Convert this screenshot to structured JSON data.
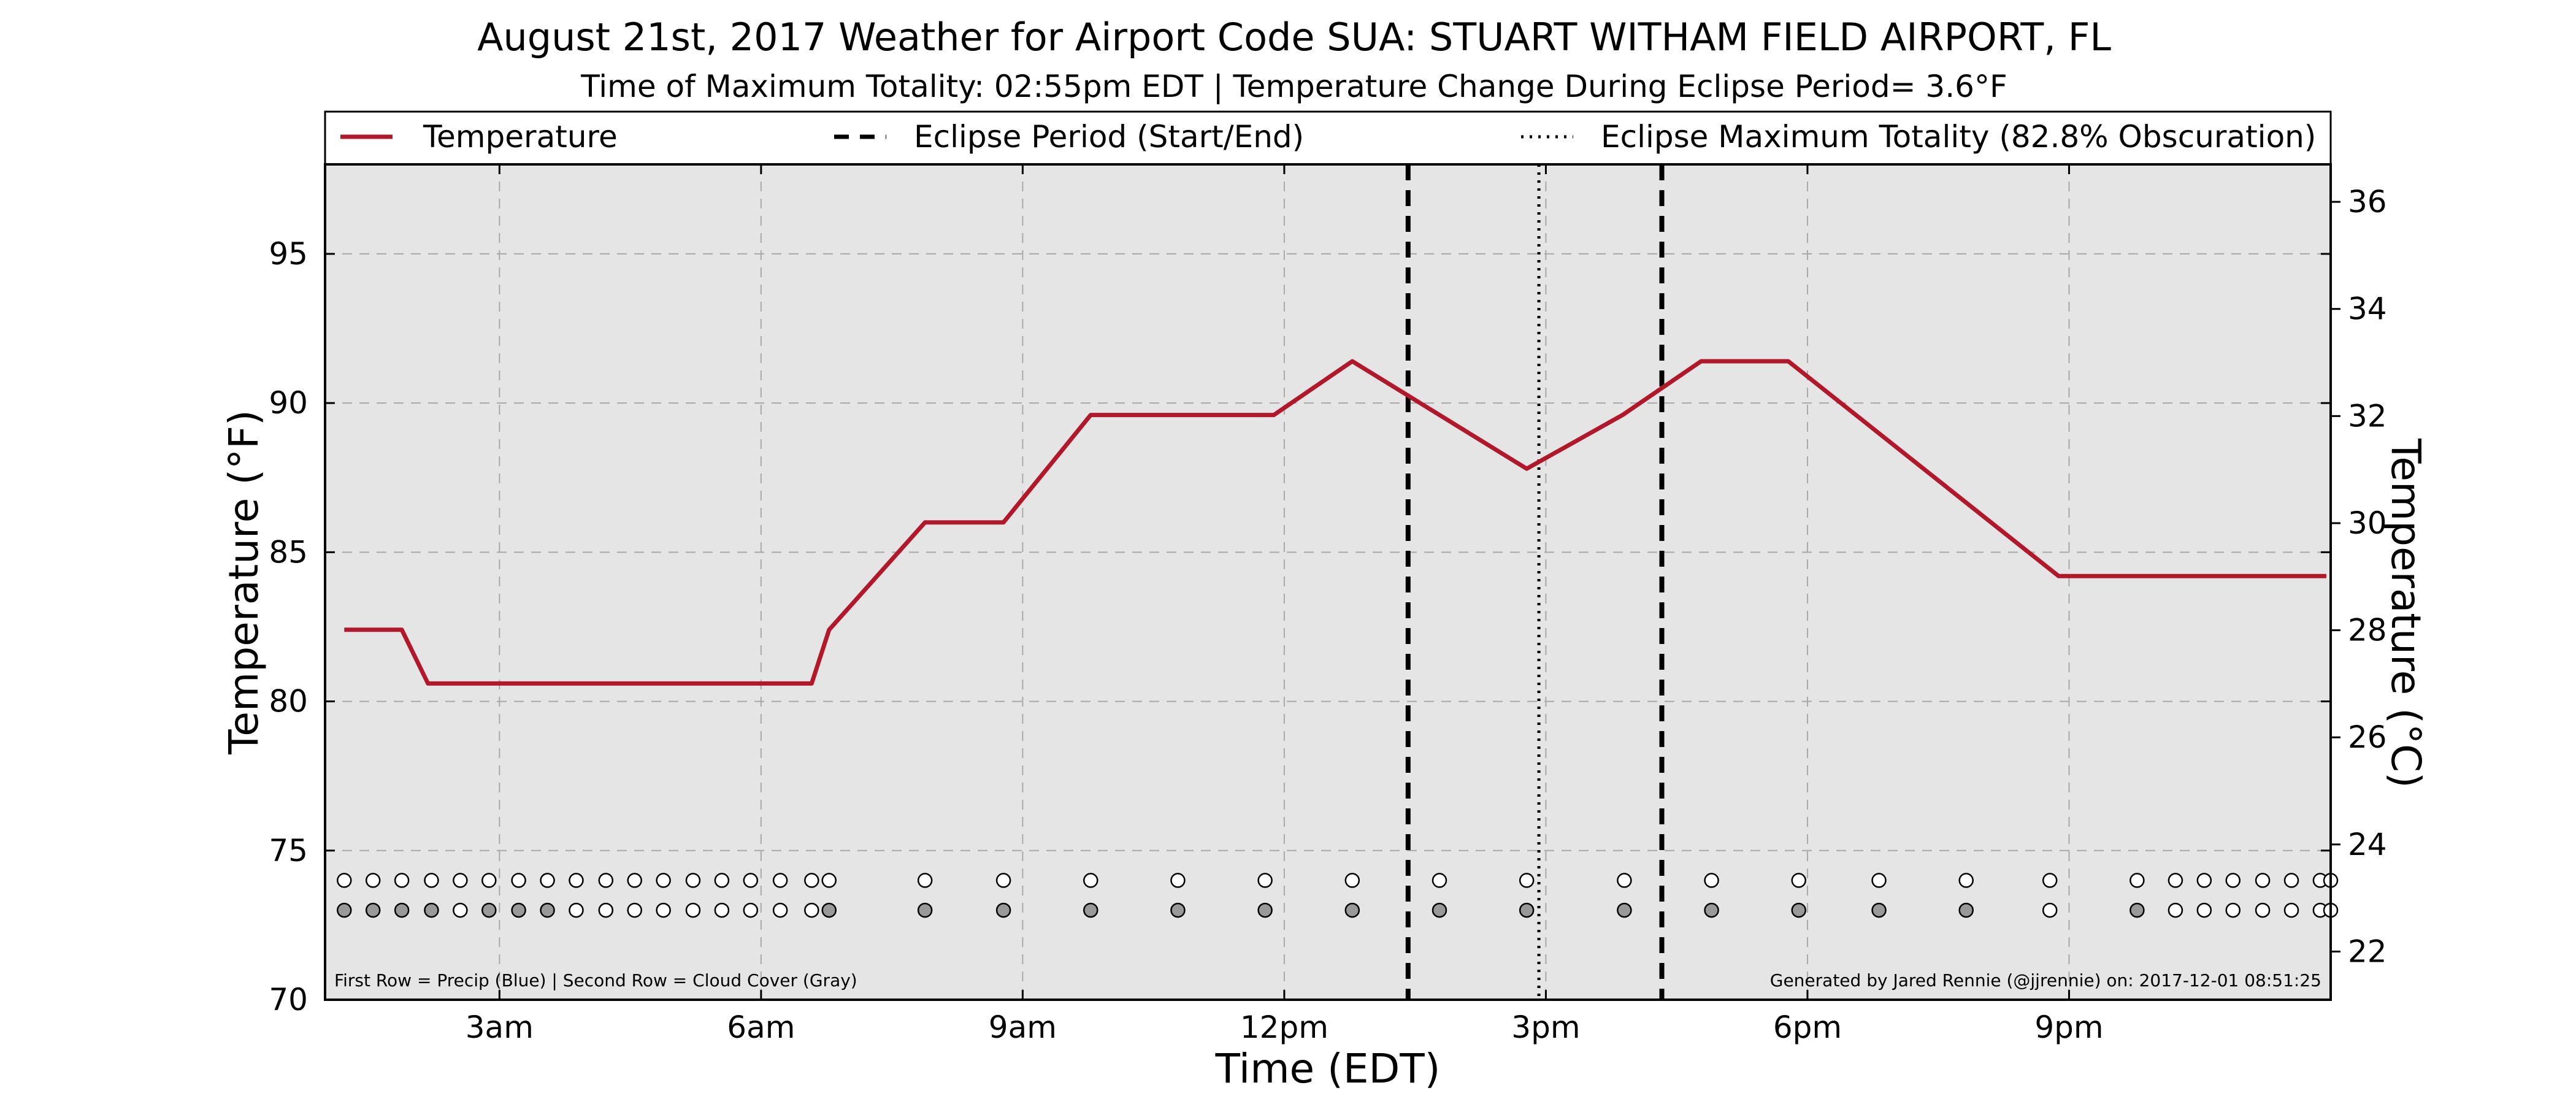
{
  "title": "August 21st, 2017 Weather for Airport Code SUA: STUART WITHAM FIELD AIRPORT, FL",
  "subtitle": "Time of Maximum Totality: 02:55pm EDT | Temperature Change During Eclipse Period= 3.6°F",
  "legend": {
    "temperature": "Temperature",
    "eclipse_period": "Eclipse Period (Start/End)",
    "eclipse_max": "Eclipse Maximum Totality (82.8% Obscuration)"
  },
  "footnote_left": "First Row = Precip (Blue) | Second Row = Cloud Cover (Gray)",
  "footnote_right": "Generated by Jared Rennie (@jjrennie) on: 2017-12-01 08:51:25",
  "colors": {
    "temperature_line": "#b2182b",
    "plot_background": "#e5e5e5",
    "cloud_gray": "#999999",
    "empty_marker": "#ffffff"
  },
  "chart_data": {
    "type": "line",
    "xlabel": "Time (EDT)",
    "ylabel_left": "Temperature (°F)",
    "ylabel_right": "Temperature (°C)",
    "xlim": [
      1.0,
      24.0
    ],
    "ylim_f": [
      70,
      98
    ],
    "ylim_c": [
      21.1,
      36.7
    ],
    "x_ticks": [
      {
        "x": 3,
        "label": "3am"
      },
      {
        "x": 6,
        "label": "6am"
      },
      {
        "x": 9,
        "label": "9am"
      },
      {
        "x": 12,
        "label": "12pm"
      },
      {
        "x": 15,
        "label": "3pm"
      },
      {
        "x": 18,
        "label": "6pm"
      },
      {
        "x": 21,
        "label": "9pm"
      }
    ],
    "y_ticks_f": [
      70,
      75,
      80,
      85,
      90,
      95
    ],
    "y_ticks_c": [
      22,
      24,
      26,
      28,
      30,
      32,
      34,
      36
    ],
    "grid": true,
    "legend_position": "top",
    "series": [
      {
        "name": "Temperature",
        "x": [
          1.22,
          1.88,
          2.18,
          6.58,
          6.78,
          7.88,
          8.78,
          9.78,
          11.88,
          12.78,
          14.78,
          15.88,
          16.78,
          17.78,
          20.88,
          23.95
        ],
        "y": [
          82.4,
          82.4,
          80.6,
          80.6,
          82.4,
          86.0,
          86.0,
          89.6,
          89.6,
          91.4,
          87.8,
          89.6,
          91.4,
          91.4,
          84.2,
          84.2
        ]
      }
    ],
    "eclipse_start_x": 13.42,
    "eclipse_max_x": 14.92,
    "eclipse_end_x": 16.33,
    "observation_markers": [
      {
        "x": 1.22,
        "precip": false,
        "cloud": true
      },
      {
        "x": 1.55,
        "precip": false,
        "cloud": true
      },
      {
        "x": 1.88,
        "precip": false,
        "cloud": true
      },
      {
        "x": 2.22,
        "precip": false,
        "cloud": true
      },
      {
        "x": 2.55,
        "precip": false,
        "cloud": false
      },
      {
        "x": 2.88,
        "precip": false,
        "cloud": true
      },
      {
        "x": 3.22,
        "precip": false,
        "cloud": true
      },
      {
        "x": 3.55,
        "precip": false,
        "cloud": true
      },
      {
        "x": 3.88,
        "precip": false,
        "cloud": false
      },
      {
        "x": 4.22,
        "precip": false,
        "cloud": false
      },
      {
        "x": 4.55,
        "precip": false,
        "cloud": false
      },
      {
        "x": 4.88,
        "precip": false,
        "cloud": false
      },
      {
        "x": 5.22,
        "precip": false,
        "cloud": false
      },
      {
        "x": 5.55,
        "precip": false,
        "cloud": false
      },
      {
        "x": 5.88,
        "precip": false,
        "cloud": false
      },
      {
        "x": 6.22,
        "precip": false,
        "cloud": false
      },
      {
        "x": 6.58,
        "precip": false,
        "cloud": false
      },
      {
        "x": 6.78,
        "precip": false,
        "cloud": true
      },
      {
        "x": 7.88,
        "precip": false,
        "cloud": true
      },
      {
        "x": 8.78,
        "precip": false,
        "cloud": true
      },
      {
        "x": 9.78,
        "precip": false,
        "cloud": true
      },
      {
        "x": 10.78,
        "precip": false,
        "cloud": true
      },
      {
        "x": 11.78,
        "precip": false,
        "cloud": true
      },
      {
        "x": 12.78,
        "precip": false,
        "cloud": true
      },
      {
        "x": 13.78,
        "precip": false,
        "cloud": true
      },
      {
        "x": 14.78,
        "precip": false,
        "cloud": true
      },
      {
        "x": 15.9,
        "precip": false,
        "cloud": true
      },
      {
        "x": 16.9,
        "precip": false,
        "cloud": true
      },
      {
        "x": 17.9,
        "precip": false,
        "cloud": true
      },
      {
        "x": 18.82,
        "precip": false,
        "cloud": true
      },
      {
        "x": 19.82,
        "precip": false,
        "cloud": true
      },
      {
        "x": 20.78,
        "precip": false,
        "cloud": false
      },
      {
        "x": 21.78,
        "precip": false,
        "cloud": true
      },
      {
        "x": 22.22,
        "precip": false,
        "cloud": false
      },
      {
        "x": 22.55,
        "precip": false,
        "cloud": false
      },
      {
        "x": 22.88,
        "precip": false,
        "cloud": false
      },
      {
        "x": 23.22,
        "precip": false,
        "cloud": false
      },
      {
        "x": 23.55,
        "precip": false,
        "cloud": false
      },
      {
        "x": 23.88,
        "precip": false,
        "cloud": false
      },
      {
        "x": 24.0,
        "precip": false,
        "cloud": false
      }
    ]
  }
}
